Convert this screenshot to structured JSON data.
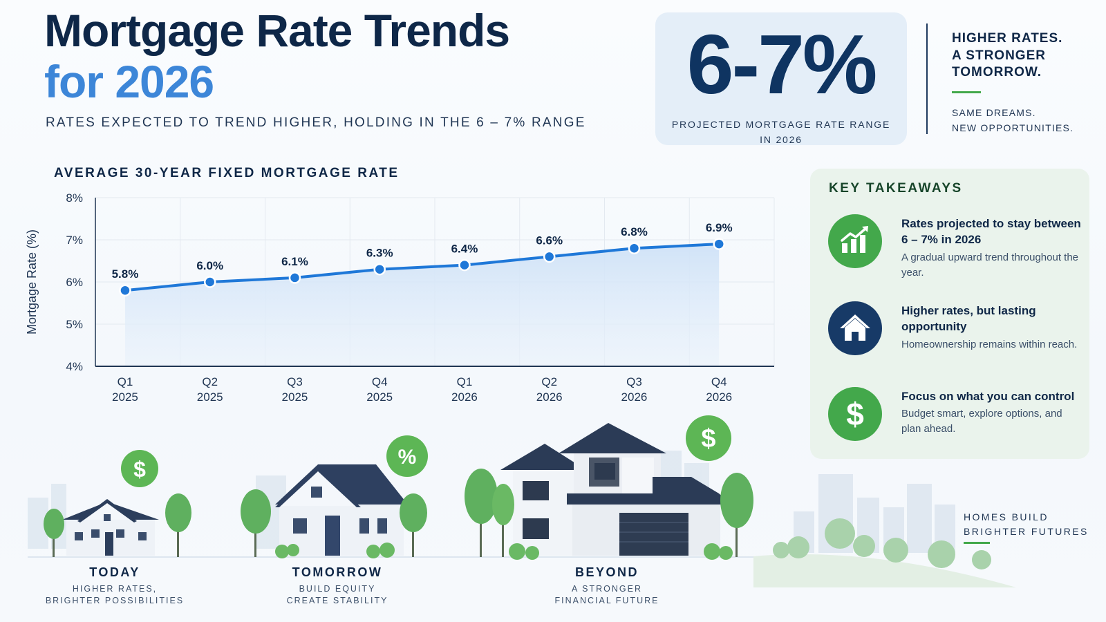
{
  "header": {
    "title_line1": "Mortgage Rate Trends",
    "title_line2": "for 2026",
    "subtitle": "RATES EXPECTED TO TREND HIGHER, HOLDING IN THE 6 – 7% RANGE"
  },
  "range_card": {
    "value": "6-7%",
    "caption": "PROJECTED MORTGAGE RATE RANGE IN 2026"
  },
  "slogan": {
    "main": [
      "HIGHER RATES.",
      "A STRONGER",
      "TOMORROW."
    ],
    "sub": [
      "SAME DREAMS.",
      "NEW OPPORTUNITIES."
    ]
  },
  "chart_data": {
    "type": "line",
    "title": "AVERAGE 30-YEAR FIXED MORTGAGE RATE",
    "ylabel": "Mortgage Rate (%)",
    "xlabel": "",
    "ylim": [
      4,
      8
    ],
    "yticks": [
      "4%",
      "5%",
      "6%",
      "7%",
      "8%"
    ],
    "grid": true,
    "categories": [
      [
        "Q1",
        "2025"
      ],
      [
        "Q2",
        "2025"
      ],
      [
        "Q3",
        "2025"
      ],
      [
        "Q4",
        "2025"
      ],
      [
        "Q1",
        "2026"
      ],
      [
        "Q2",
        "2026"
      ],
      [
        "Q3",
        "2026"
      ],
      [
        "Q4",
        "2026"
      ]
    ],
    "values": [
      5.8,
      6.0,
      6.1,
      6.3,
      6.4,
      6.6,
      6.8,
      6.9
    ],
    "value_labels": [
      "5.8%",
      "6.0%",
      "6.1%",
      "6.3%",
      "6.4%",
      "6.6%",
      "6.8%",
      "6.9%"
    ],
    "line_color": "#1f78d8"
  },
  "takeaways": {
    "title": "KEY TAKEAWAYS",
    "items": [
      {
        "icon": "bar-chart-growth-icon",
        "heading": "Rates projected to stay between 6 – 7% in 2026",
        "description": "A gradual upward trend throughout the year.",
        "color": "#43a84b"
      },
      {
        "icon": "house-icon",
        "heading": "Higher rates, but lasting opportunity",
        "description": "Homeownership remains within reach.",
        "color": "#173a67"
      },
      {
        "icon": "dollar-icon",
        "heading": "Focus on what you can control",
        "description": "Budget smart, explore options, and plan ahead.",
        "color": "#43a84b"
      }
    ]
  },
  "stages": [
    {
      "title": "TODAY",
      "subtitle": [
        "HIGHER RATES,",
        "BRIGHTER POSSIBILITIES"
      ],
      "badge": "$"
    },
    {
      "title": "TOMORROW",
      "subtitle": [
        "BUILD EQUITY",
        "CREATE STABILITY"
      ],
      "badge": "%"
    },
    {
      "title": "BEYOND",
      "subtitle": [
        "A STRONGER",
        "FINANCIAL FUTURE"
      ],
      "badge": "$"
    }
  ],
  "footer": {
    "lines": [
      "HOMES BUILD",
      "BRIGHTER FUTURES"
    ]
  },
  "colors": {
    "navy": "#0e2748",
    "accent_blue": "#3d86d8",
    "green": "#43a84b"
  }
}
